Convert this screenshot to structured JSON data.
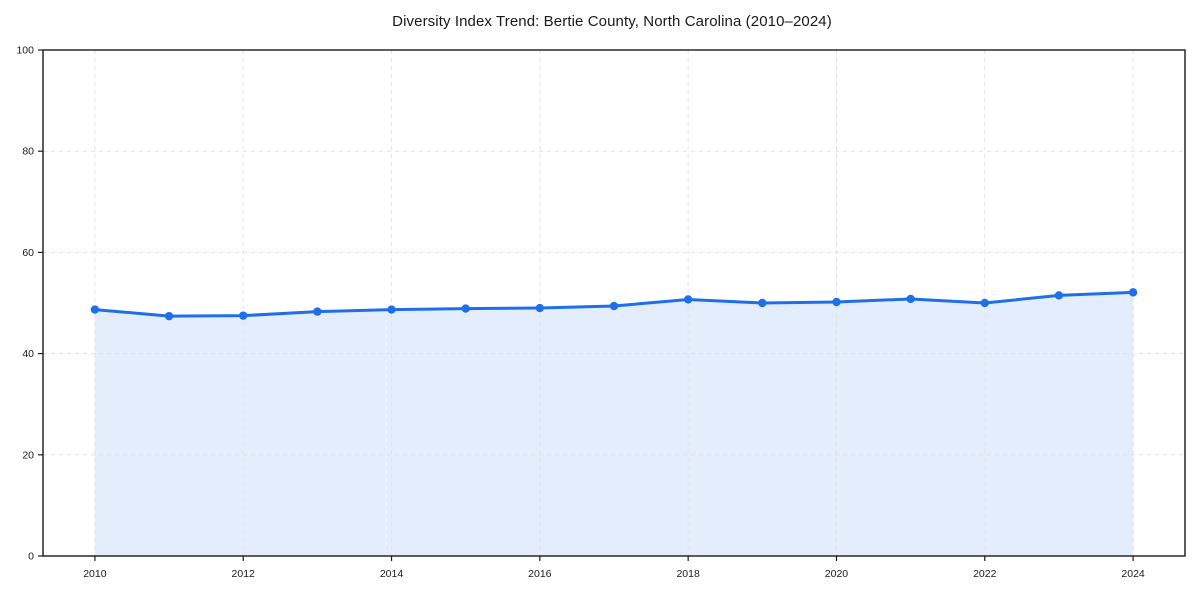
{
  "figure": {
    "background": "#FFFFFF"
  },
  "chart_data": {
    "type": "area",
    "title": "Diversity Index Trend: Bertie County, North Carolina (2010–2024)",
    "x": [
      2010,
      2011,
      2012,
      2013,
      2014,
      2015,
      2016,
      2017,
      2018,
      2019,
      2020,
      2021,
      2022,
      2023,
      2024
    ],
    "series": [
      {
        "name": "Diversity Index",
        "values": [
          48.7,
          47.4,
          47.5,
          48.3,
          48.7,
          48.9,
          49.0,
          49.4,
          50.7,
          50.0,
          50.2,
          50.8,
          50.0,
          51.5,
          52.1
        ]
      }
    ],
    "xlabel": "",
    "ylabel": "",
    "ylim": [
      0,
      100
    ],
    "xlim_years": [
      2010,
      2024
    ],
    "xticks": [
      2010,
      2012,
      2014,
      2016,
      2018,
      2020,
      2022,
      2024
    ],
    "yticks": [
      0,
      20,
      40,
      60,
      80,
      100
    ],
    "grid": {
      "visible": true,
      "style": "dashed",
      "axes": "both"
    },
    "legend": {
      "visible": false
    },
    "markers": true,
    "colors": {
      "line": "#1F6FE8",
      "marker": "#1F6FE8",
      "fill": "#E4EDFB",
      "grid": "#E1E1E1",
      "spine": "#1A1A1A",
      "tick": "#1A1A1A",
      "tick_label": "#1A1A1A",
      "title": "#1A1A1A",
      "background": "#FFFFFF"
    }
  }
}
